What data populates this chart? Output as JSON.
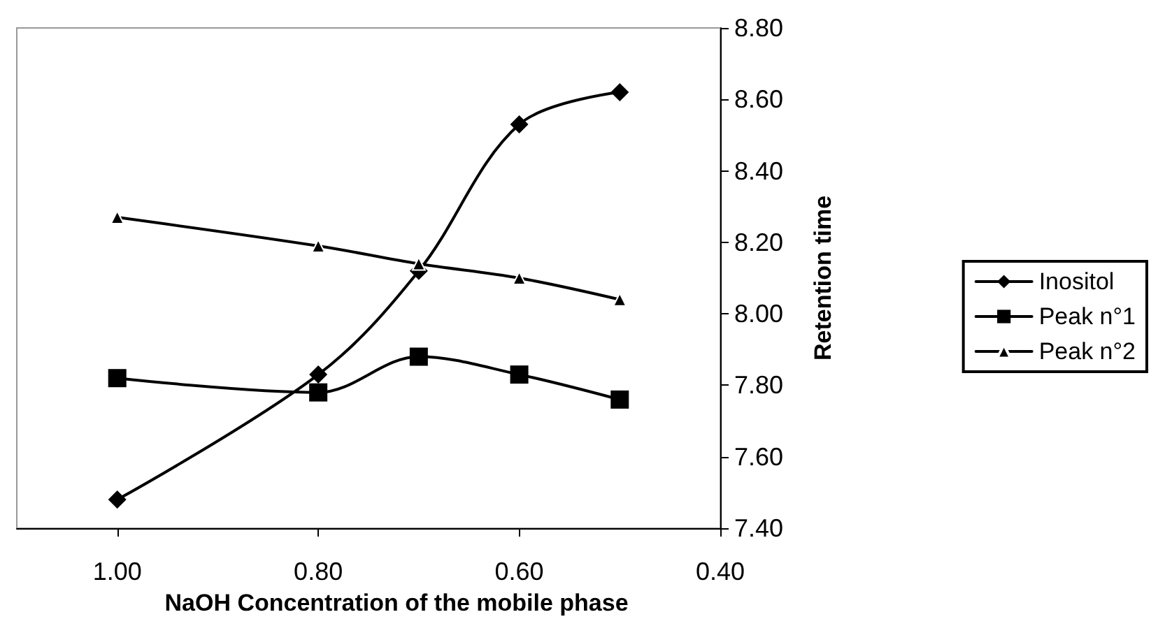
{
  "chart_data": {
    "type": "line",
    "xlabel": "NaOH Concentration of the mobile phase",
    "ylabel": "Retention time",
    "x": [
      1.0,
      0.8,
      0.7,
      0.6,
      0.5
    ],
    "xlim": [
      1.1,
      0.4
    ],
    "xticks": [
      {
        "value": 1.0,
        "label": "1.00"
      },
      {
        "value": 0.8,
        "label": "0.80"
      },
      {
        "value": 0.6,
        "label": "0.60"
      },
      {
        "value": 0.4,
        "label": "0.40"
      }
    ],
    "ylim": [
      7.4,
      8.8
    ],
    "yticks": [
      {
        "value": 7.4,
        "label": "7.40"
      },
      {
        "value": 7.6,
        "label": "7.60"
      },
      {
        "value": 7.8,
        "label": "7.80"
      },
      {
        "value": 8.0,
        "label": "8.00"
      },
      {
        "value": 8.2,
        "label": "8.20"
      },
      {
        "value": 8.4,
        "label": "8.40"
      },
      {
        "value": 8.6,
        "label": "8.60"
      },
      {
        "value": 8.8,
        "label": "8.80"
      }
    ],
    "series": [
      {
        "name": "Inositol",
        "color": "#000000",
        "marker": "diamond",
        "values": [
          7.48,
          7.83,
          8.12,
          8.53,
          8.62
        ]
      },
      {
        "name": "Peak n°1",
        "color": "#000000",
        "marker": "square",
        "values": [
          7.82,
          7.78,
          7.88,
          7.83,
          7.76
        ]
      },
      {
        "name": "Peak n°2",
        "color": "#000000",
        "marker": "triangle",
        "values": [
          8.27,
          8.19,
          8.14,
          8.1,
          8.04
        ]
      }
    ],
    "legend": "right",
    "grid": false,
    "line_style": "solid"
  }
}
